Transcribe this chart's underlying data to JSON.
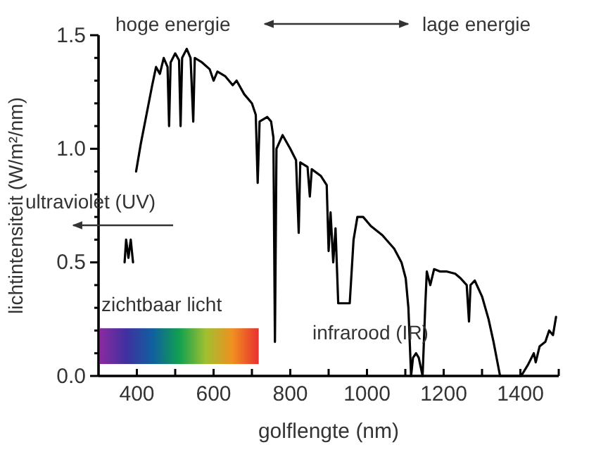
{
  "chart_data": {
    "type": "line",
    "xlabel": "golflengte (nm)",
    "ylabel": "lichtintensiteit (W/m²/nm)",
    "annotations": [
      "hoge energie",
      "lage energie",
      "ultraviolet (UV)",
      "zichtbaar licht",
      "infrarood (IR)"
    ],
    "x": [
      368,
      372,
      378,
      384,
      390,
      394,
      398,
      410,
      425,
      440,
      450,
      460,
      470,
      480,
      484,
      488,
      500,
      510,
      514,
      518,
      530,
      540,
      547,
      551,
      570,
      590,
      600,
      610,
      630,
      650,
      660,
      680,
      700,
      710,
      715,
      720,
      740,
      750,
      756,
      760,
      764,
      780,
      800,
      815,
      822,
      826,
      845,
      851,
      856,
      880,
      895,
      900,
      905,
      912,
      918,
      925,
      955,
      965,
      975,
      990,
      1010,
      1040,
      1071,
      1090,
      1101,
      1108,
      1115,
      1120,
      1128,
      1135,
      1145,
      1152,
      1156,
      1165,
      1175,
      1190,
      1207,
      1230,
      1244,
      1260,
      1266,
      1270,
      1281,
      1300,
      1317,
      1330,
      1347,
      1402,
      1420,
      1435,
      1440,
      1450,
      1465,
      1475,
      1485,
      1493
    ],
    "series": [
      {
        "color": "#000000",
        "values": [
          0.5,
          0.6,
          0.52,
          0.6,
          0.5,
          null,
          0.9,
          1.02,
          1.15,
          1.28,
          1.36,
          1.33,
          1.4,
          1.36,
          1.1,
          1.38,
          1.42,
          1.39,
          1.1,
          1.4,
          1.44,
          1.4,
          1.12,
          1.4,
          1.38,
          1.35,
          1.3,
          1.34,
          1.32,
          1.28,
          1.3,
          1.24,
          1.2,
          1.15,
          0.85,
          1.12,
          1.14,
          1.12,
          1.05,
          0.15,
          1.0,
          1.06,
          1.0,
          0.95,
          0.63,
          0.94,
          0.92,
          0.79,
          0.91,
          0.88,
          0.84,
          0.55,
          0.72,
          0.5,
          0.65,
          0.32,
          0.32,
          0.6,
          0.7,
          0.7,
          0.66,
          0.62,
          0.56,
          0.5,
          0.43,
          0.3,
          0.0,
          0.08,
          0.1,
          0.08,
          0.0,
          0.31,
          0.46,
          0.4,
          0.47,
          0.46,
          0.46,
          0.45,
          0.43,
          0.4,
          0.24,
          0.4,
          0.42,
          0.35,
          0.25,
          0.15,
          0.0,
          0.0,
          0.05,
          0.1,
          0.06,
          0.13,
          0.15,
          0.2,
          0.18,
          0.26
        ]
      }
    ],
    "xlim": [
      300,
      1500
    ],
    "xticks": [
      400,
      {
        "value": 500,
        "label": null
      },
      600,
      {
        "value": 700,
        "label": null
      },
      800,
      {
        "value": 900,
        "label": null
      },
      1000,
      {
        "value": 1100,
        "label": null
      },
      1200,
      {
        "value": 1300,
        "label": null
      },
      1400,
      {
        "value": 1500,
        "label": null
      }
    ],
    "ylim": [
      0,
      1.5
    ],
    "yticks": [
      {
        "value": 0,
        "label": "0.0"
      },
      {
        "value": 0.1,
        "label": null
      },
      {
        "value": 0.2,
        "label": null
      },
      {
        "value": 0.3,
        "label": null
      },
      {
        "value": 0.4,
        "label": null
      },
      0.5,
      {
        "value": 0.6,
        "label": null
      },
      {
        "value": 0.7,
        "label": null
      },
      {
        "value": 0.8,
        "label": null
      },
      {
        "value": 0.9,
        "label": null
      },
      {
        "value": 1,
        "label": "1.0"
      },
      {
        "value": 1.1,
        "label": null
      },
      {
        "value": 1.2,
        "label": null
      },
      {
        "value": 1.3,
        "label": null
      },
      {
        "value": 1.4,
        "label": null
      },
      1.5
    ],
    "grid": false,
    "marker": "none",
    "line_style": "solid"
  }
}
